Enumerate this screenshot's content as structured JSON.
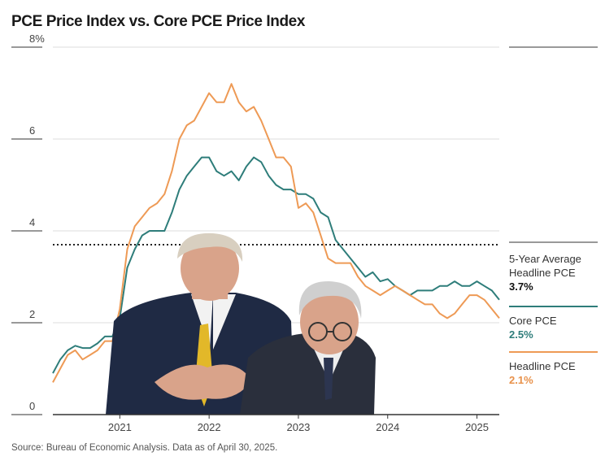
{
  "title": "PCE Price Index vs. Core PCE Price Index",
  "source": "Source: Bureau of Economic Analysis. Data as of April 30, 2025.",
  "colors": {
    "core": "#2e7d7a",
    "headline": "#ee9a55",
    "average": "#222222",
    "grid": "#dddddd",
    "axis": "#333333",
    "suit": "#1f2a44",
    "tie": "#e2b829",
    "skin": "#d9a38a",
    "hair": "#cfcfcf"
  },
  "legend": {
    "average_label": "5-Year Average Headline PCE",
    "average_value": "3.7%",
    "core_label": "Core PCE",
    "core_value": "2.5%",
    "headline_label": "Headline PCE",
    "headline_value": "2.1%"
  },
  "photo": {
    "subjects": "Two men seated in dark suits overlaid on the chart"
  },
  "chart_data": {
    "type": "line",
    "title": "PCE Price Index vs. Core PCE Price Index",
    "xlabel": "",
    "ylabel": "",
    "ylim": [
      0,
      8
    ],
    "xlim": [
      2020.25,
      2025.25
    ],
    "yticks": [
      0,
      2,
      4,
      6,
      8
    ],
    "ytick_labels": [
      "0",
      "2",
      "4",
      "6",
      "8%"
    ],
    "xticks": [
      2021,
      2022,
      2023,
      2024,
      2025
    ],
    "xtick_labels": [
      "2021",
      "2022",
      "2023",
      "2024",
      "2025"
    ],
    "grid": true,
    "average_value": 3.7,
    "series": [
      {
        "name": "Core PCE",
        "x": [
          2020.25,
          2020.333,
          2020.417,
          2020.5,
          2020.583,
          2020.667,
          2020.75,
          2020.833,
          2020.917,
          2021.0,
          2021.083,
          2021.167,
          2021.25,
          2021.333,
          2021.417,
          2021.5,
          2021.583,
          2021.667,
          2021.75,
          2021.833,
          2021.917,
          2022.0,
          2022.083,
          2022.167,
          2022.25,
          2022.333,
          2022.417,
          2022.5,
          2022.583,
          2022.667,
          2022.75,
          2022.833,
          2022.917,
          2023.0,
          2023.083,
          2023.167,
          2023.25,
          2023.333,
          2023.417,
          2023.5,
          2023.583,
          2023.667,
          2023.75,
          2023.833,
          2023.917,
          2024.0,
          2024.083,
          2024.167,
          2024.25,
          2024.333,
          2024.417,
          2024.5,
          2024.583,
          2024.667,
          2024.75,
          2024.833,
          2024.917,
          2025.0,
          2025.083,
          2025.167,
          2025.25
        ],
        "values": [
          0.9,
          1.2,
          1.4,
          1.5,
          1.45,
          1.45,
          1.55,
          1.7,
          1.7,
          2.1,
          3.2,
          3.6,
          3.9,
          4.0,
          4.0,
          4.0,
          4.4,
          4.9,
          5.2,
          5.4,
          5.6,
          5.6,
          5.3,
          5.2,
          5.3,
          5.1,
          5.4,
          5.6,
          5.5,
          5.2,
          5.0,
          4.9,
          4.9,
          4.8,
          4.8,
          4.7,
          4.4,
          4.3,
          3.8,
          3.6,
          3.4,
          3.2,
          3.0,
          3.1,
          2.9,
          2.95,
          2.8,
          2.7,
          2.6,
          2.7,
          2.7,
          2.7,
          2.8,
          2.8,
          2.9,
          2.8,
          2.8,
          2.9,
          2.8,
          2.7,
          2.5
        ]
      },
      {
        "name": "Headline PCE",
        "x": [
          2020.25,
          2020.333,
          2020.417,
          2020.5,
          2020.583,
          2020.667,
          2020.75,
          2020.833,
          2020.917,
          2021.0,
          2021.083,
          2021.167,
          2021.25,
          2021.333,
          2021.417,
          2021.5,
          2021.583,
          2021.667,
          2021.75,
          2021.833,
          2021.917,
          2022.0,
          2022.083,
          2022.167,
          2022.25,
          2022.333,
          2022.417,
          2022.5,
          2022.583,
          2022.667,
          2022.75,
          2022.833,
          2022.917,
          2023.0,
          2023.083,
          2023.167,
          2023.25,
          2023.333,
          2023.417,
          2023.5,
          2023.583,
          2023.667,
          2023.75,
          2023.833,
          2023.917,
          2024.0,
          2024.083,
          2024.167,
          2024.25,
          2024.333,
          2024.417,
          2024.5,
          2024.583,
          2024.667,
          2024.75,
          2024.833,
          2024.917,
          2025.0,
          2025.083,
          2025.167,
          2025.25
        ],
        "values": [
          0.7,
          1.0,
          1.3,
          1.4,
          1.2,
          1.3,
          1.4,
          1.6,
          1.6,
          2.3,
          3.6,
          4.1,
          4.3,
          4.5,
          4.6,
          4.8,
          5.3,
          6.0,
          6.3,
          6.4,
          6.7,
          7.0,
          6.8,
          6.8,
          7.2,
          6.8,
          6.6,
          6.7,
          6.4,
          6.0,
          5.6,
          5.6,
          5.4,
          4.5,
          4.6,
          4.4,
          3.9,
          3.4,
          3.3,
          3.3,
          3.3,
          3.0,
          2.8,
          2.7,
          2.6,
          2.7,
          2.8,
          2.7,
          2.6,
          2.5,
          2.4,
          2.4,
          2.2,
          2.1,
          2.2,
          2.4,
          2.6,
          2.6,
          2.5,
          2.3,
          2.1
        ]
      }
    ]
  }
}
